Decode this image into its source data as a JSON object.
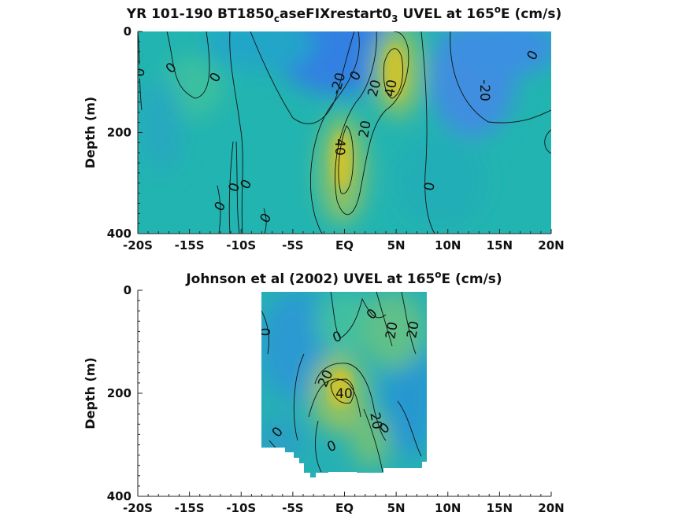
{
  "chart_data": [
    {
      "type": "heatmap",
      "title_parts": [
        "YR 101-190 BT1850",
        "c",
        "aseFIXrestart0",
        "3",
        " UVEL at 165",
        "o",
        "E (cm/s)"
      ],
      "ylabel": "Depth (m)",
      "xlabel": "",
      "xlim": [
        -20,
        20
      ],
      "ylim": [
        0,
        400
      ],
      "y_reversed": true,
      "x_tick_values": [
        -20,
        -15,
        -10,
        -5,
        0,
        5,
        10,
        15,
        20
      ],
      "x_tick_labels": [
        "-20S",
        "-15S",
        "-10S",
        "-5S",
        "EQ",
        "5N",
        "10N",
        "15N",
        "20N"
      ],
      "y_tick_values": [
        0,
        200,
        400
      ],
      "y_tick_labels": [
        "0",
        "200",
        "400"
      ],
      "colormap": "parula",
      "color_low": "#3a7fe6",
      "color_high": "#c9c332",
      "data_x_extent": [
        -20,
        20
      ],
      "data_depth_extent": [
        0,
        395
      ],
      "features": [
        {
          "name": "southern branch core",
          "lat": 0,
          "depth": 220,
          "max_speed": 45
        },
        {
          "name": "northern core",
          "lat": 5,
          "depth": 85,
          "max_speed": 45
        },
        {
          "name": "westward surface flow",
          "lat": -2,
          "depth": 40,
          "min_speed": -25
        },
        {
          "name": "northern westward flow",
          "lat": 12,
          "depth": 90,
          "min_speed": -25
        }
      ],
      "contour_labels": [
        {
          "text": "0",
          "lat": -19.5,
          "depth": 80
        },
        {
          "text": "0",
          "lat": -16.2,
          "depth": 72
        },
        {
          "text": "0",
          "lat": -12.5,
          "depth": 88
        },
        {
          "text": "0",
          "lat": -12.5,
          "depth": 340
        },
        {
          "text": "0",
          "lat": -10.3,
          "depth": 303
        },
        {
          "text": "0",
          "lat": -9.5,
          "depth": 295
        },
        {
          "text": "0",
          "lat": -7.5,
          "depth": 360
        },
        {
          "text": "-20",
          "lat": -0.5,
          "depth": 105
        },
        {
          "text": "0",
          "lat": 1.2,
          "depth": 88
        },
        {
          "text": "20",
          "lat": 3.0,
          "depth": 110
        },
        {
          "text": "40",
          "lat": 4.5,
          "depth": 112
        },
        {
          "text": "40",
          "lat": -0.3,
          "depth": 230
        },
        {
          "text": "20",
          "lat": 2.2,
          "depth": 190
        },
        {
          "text": "0",
          "lat": 8.5,
          "depth": 305
        },
        {
          "text": "-20",
          "lat": 13.7,
          "depth": 115
        },
        {
          "text": "0",
          "lat": 18.2,
          "depth": 48
        }
      ]
    },
    {
      "type": "heatmap",
      "title_parts": [
        "Johnson et al (2002) UVEL at 165",
        "o",
        "E (cm/s)"
      ],
      "ylabel": "Depth (m)",
      "xlabel": "",
      "xlim": [
        -20,
        20
      ],
      "ylim": [
        0,
        400
      ],
      "y_reversed": true,
      "x_tick_values": [
        -20,
        -15,
        -10,
        -5,
        0,
        5,
        10,
        15,
        20
      ],
      "x_tick_labels": [
        "-20S",
        "-15S",
        "-10S",
        "-5S",
        "EQ",
        "5N",
        "10N",
        "15N",
        "20N"
      ],
      "y_tick_values": [
        0,
        200,
        400
      ],
      "y_tick_labels": [
        "0",
        "200",
        "400"
      ],
      "colormap": "parula",
      "color_low": "#3a7fe6",
      "color_high": "#c9c332",
      "data_x_extent": [
        -8,
        8
      ],
      "data_depth_extent": [
        0,
        360
      ],
      "features": [
        {
          "name": "southern core",
          "lat": 0,
          "depth": 190,
          "max_speed": 42
        },
        {
          "name": "northern branch",
          "lat": 5,
          "depth": 80,
          "max_speed": 30
        }
      ],
      "contour_labels": [
        {
          "text": "0",
          "lat": -7.7,
          "depth": 82
        },
        {
          "text": "0",
          "lat": -0.5,
          "depth": 90
        },
        {
          "text": "0",
          "lat": 2.8,
          "depth": 48
        },
        {
          "text": "20",
          "lat": 4.8,
          "depth": 80
        },
        {
          "text": "20",
          "lat": 6.8,
          "depth": 78
        },
        {
          "text": "20",
          "lat": -1.3,
          "depth": 173
        },
        {
          "text": "40",
          "lat": 0,
          "depth": 200
        },
        {
          "text": "20",
          "lat": 3.2,
          "depth": 255
        },
        {
          "text": "0",
          "lat": -6.5,
          "depth": 275
        },
        {
          "text": "0",
          "lat": -1.0,
          "depth": 305
        },
        {
          "text": "0",
          "lat": 3.8,
          "depth": 265
        }
      ]
    }
  ]
}
